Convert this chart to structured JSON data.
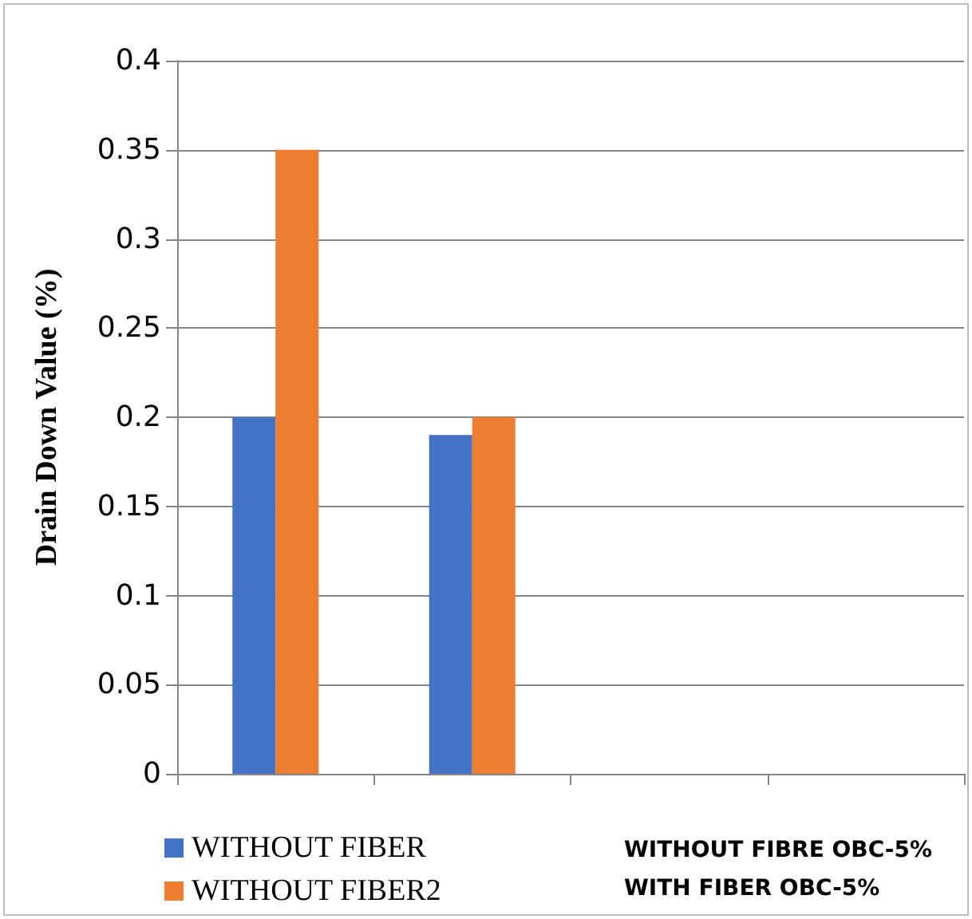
{
  "chart_data": {
    "type": "bar",
    "ylabel": "Drain Down Value (%)",
    "categories": [
      null,
      null,
      null,
      null
    ],
    "series": [
      {
        "name": "WITHOUT FIBER",
        "color": "#4472c4",
        "values": [
          0.2,
          0.19,
          null,
          null
        ]
      },
      {
        "name": "WITHOUT FIBER2",
        "color": "#ed7d31",
        "values": [
          0.35,
          0.2,
          null,
          null
        ]
      }
    ],
    "ylim": [
      0,
      0.4
    ],
    "yticks": [
      0,
      0.05,
      0.1,
      0.15,
      0.2,
      0.25,
      0.3,
      0.35,
      0.4
    ],
    "grid": "y",
    "legend": "bottom left",
    "annotations": [
      "WITHOUT FIBRE OBC-5%\nWITH FIBER OBC-5%"
    ]
  }
}
